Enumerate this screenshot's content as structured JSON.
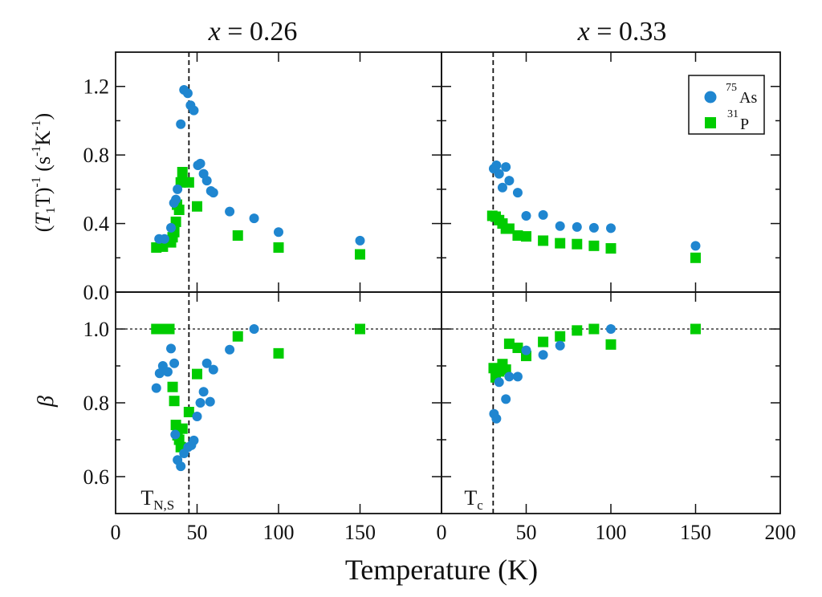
{
  "chart_data": {
    "type": "scatter",
    "xlabel": "Temperature (K)",
    "colors": {
      "As": "#1f86d0",
      "P": "#00cc00",
      "axis": "#111111"
    },
    "legend": {
      "placement": "top-right",
      "entries": [
        {
          "key": "As",
          "sup": "75",
          "label": "As",
          "marker": "circle"
        },
        {
          "key": "P",
          "sup": "31",
          "label": "P",
          "marker": "square"
        }
      ]
    },
    "rows": [
      {
        "id": "relaxation",
        "ylabel_parts": {
          "open": "(",
          "t1": "T",
          "t1sub": "1",
          "tail": "T)",
          "sup1": "-1",
          "unit_open": " (s",
          "sup2": "-1",
          "unit_k": "K",
          "sup3": "-1",
          "close": ")"
        },
        "ylim": [
          0.0,
          1.4
        ],
        "yticks": [
          0.0,
          0.4,
          0.8,
          1.2
        ],
        "ytick_labels": [
          "0.0",
          "0.4",
          "0.8",
          "1.2"
        ],
        "yminor": [
          0.2,
          0.6,
          1.0
        ]
      },
      {
        "id": "beta",
        "ylabel": "β",
        "ylim": [
          0.5,
          1.1
        ],
        "yticks": [
          0.6,
          0.8,
          1.0
        ],
        "ytick_labels": [
          "0.6",
          "0.8",
          "1.0"
        ],
        "yminor": [
          0.7,
          0.9
        ],
        "hline": 1.0
      }
    ],
    "columns": [
      {
        "title_var": "x",
        "title_eq": " = 0.26",
        "xlim": [
          0,
          200
        ],
        "xticks": [
          0,
          50,
          100,
          150
        ],
        "xtick_labels": [
          "0",
          "50",
          "100",
          "150"
        ],
        "vline": 45,
        "vline_label": {
          "main": "T",
          "sub": "N,S"
        },
        "relaxation": {
          "As": [
            [
              26.7,
              0.31
            ],
            [
              30,
              0.31
            ],
            [
              34,
              0.375
            ],
            [
              35.8,
              0.52
            ],
            [
              37,
              0.54
            ],
            [
              38,
              0.6
            ],
            [
              40,
              0.98
            ],
            [
              42,
              1.18
            ],
            [
              44.3,
              1.16
            ],
            [
              46,
              1.09
            ],
            [
              48,
              1.06
            ],
            [
              50.5,
              0.74
            ],
            [
              52,
              0.75
            ],
            [
              54,
              0.69
            ],
            [
              56,
              0.65
            ],
            [
              58.5,
              0.59
            ],
            [
              60,
              0.58
            ],
            [
              70,
              0.47
            ],
            [
              85,
              0.43
            ],
            [
              100,
              0.35
            ],
            [
              150,
              0.3
            ]
          ],
          "P": [
            [
              25,
              0.26
            ],
            [
              29,
              0.265
            ],
            [
              34,
              0.29
            ],
            [
              35,
              0.32
            ],
            [
              36,
              0.35
            ],
            [
              37,
              0.41
            ],
            [
              37.7,
              0.51
            ],
            [
              39,
              0.48
            ],
            [
              40,
              0.64
            ],
            [
              41,
              0.7
            ],
            [
              45,
              0.64
            ],
            [
              50,
              0.5
            ],
            [
              75,
              0.33
            ],
            [
              100,
              0.26
            ],
            [
              150,
              0.22
            ]
          ]
        },
        "beta": {
          "As": [
            [
              25,
              0.84
            ],
            [
              27,
              0.88
            ],
            [
              29,
              0.9
            ],
            [
              32,
              0.884
            ],
            [
              34,
              0.947
            ],
            [
              36,
              0.907
            ],
            [
              36.6,
              0.714
            ],
            [
              38,
              0.645
            ],
            [
              40,
              0.628
            ],
            [
              42,
              0.663
            ],
            [
              44.5,
              0.68
            ],
            [
              46.5,
              0.685
            ],
            [
              48,
              0.698
            ],
            [
              50,
              0.763
            ],
            [
              52,
              0.8
            ],
            [
              54,
              0.83
            ],
            [
              56,
              0.907
            ],
            [
              58,
              0.803
            ],
            [
              60,
              0.89
            ],
            [
              70,
              0.944
            ],
            [
              85,
              1.0
            ]
          ],
          "P": [
            [
              25,
              1.0
            ],
            [
              28,
              1.0
            ],
            [
              30,
              1.0
            ],
            [
              33,
              1.0
            ],
            [
              35,
              0.843
            ],
            [
              36,
              0.805
            ],
            [
              37,
              0.74
            ],
            [
              38,
              0.712
            ],
            [
              39,
              0.7
            ],
            [
              40,
              0.68
            ],
            [
              41,
              0.73
            ],
            [
              45,
              0.775
            ],
            [
              50,
              0.878
            ],
            [
              75,
              0.98
            ],
            [
              100,
              0.934
            ],
            [
              150,
              1.0
            ]
          ]
        }
      },
      {
        "title_var": "x",
        "title_eq": " = 0.33",
        "xlim": [
          0,
          200
        ],
        "xticks": [
          0,
          50,
          100,
          150,
          200
        ],
        "xtick_labels": [
          "0",
          "50",
          "100",
          "150",
          "200"
        ],
        "vline": 30.5,
        "vline_label": {
          "main": "T",
          "sub": "c"
        },
        "relaxation": {
          "As": [
            [
              30.8,
              0.72
            ],
            [
              32.4,
              0.74
            ],
            [
              34,
              0.69
            ],
            [
              36,
              0.61
            ],
            [
              38,
              0.73
            ],
            [
              40,
              0.65
            ],
            [
              45,
              0.58
            ],
            [
              50,
              0.445
            ],
            [
              60,
              0.45
            ],
            [
              70,
              0.385
            ],
            [
              80,
              0.38
            ],
            [
              90,
              0.375
            ],
            [
              100,
              0.373
            ],
            [
              150,
              0.27
            ]
          ],
          "P": [
            [
              30,
              0.445
            ],
            [
              32,
              0.44
            ],
            [
              34,
              0.42
            ],
            [
              36,
              0.4
            ],
            [
              38,
              0.37
            ],
            [
              40,
              0.37
            ],
            [
              45,
              0.33
            ],
            [
              50,
              0.325
            ],
            [
              60,
              0.3
            ],
            [
              70,
              0.285
            ],
            [
              80,
              0.28
            ],
            [
              90,
              0.27
            ],
            [
              100,
              0.255
            ],
            [
              150,
              0.2
            ]
          ]
        },
        "beta": {
          "As": [
            [
              31,
              0.77
            ],
            [
              32.4,
              0.757
            ],
            [
              34,
              0.856
            ],
            [
              38,
              0.81
            ],
            [
              40,
              0.871
            ],
            [
              45,
              0.871
            ],
            [
              50,
              0.942
            ],
            [
              60,
              0.93
            ],
            [
              70,
              0.955
            ],
            [
              100,
              1.0
            ]
          ],
          "P": [
            [
              30.8,
              0.894
            ],
            [
              32,
              0.869
            ],
            [
              34,
              0.885
            ],
            [
              36,
              0.905
            ],
            [
              38,
              0.89
            ],
            [
              40,
              0.96
            ],
            [
              45,
              0.949
            ],
            [
              50,
              0.927
            ],
            [
              60,
              0.965
            ],
            [
              70,
              0.98
            ],
            [
              80,
              0.996
            ],
            [
              90,
              1.0
            ],
            [
              100,
              0.958
            ],
            [
              150,
              1.0
            ]
          ]
        }
      }
    ]
  }
}
